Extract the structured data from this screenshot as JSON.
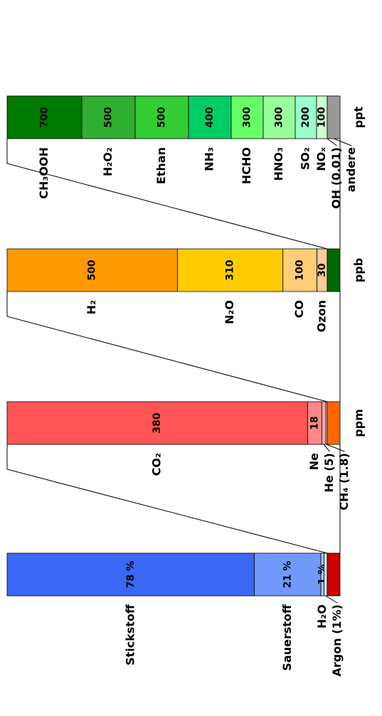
{
  "chart_data": {
    "type": "zoom-stacked-bar",
    "bars": [
      {
        "categories": [
          "Stickstoff",
          "Sauerstoff",
          "H₂O",
          "Argon (1%)"
        ],
        "values": [
          78,
          21,
          1,
          1
        ],
        "value_labels": [
          "78 %",
          "21 %",
          "1 %",
          null
        ],
        "colors": [
          "#3b67f5",
          "#6f99fb",
          "#a8c8fb",
          "#cde8fb"
        ],
        "rest_color": "#cc0000"
      },
      {
        "unit": "ppm",
        "categories": [
          "CO₂",
          "Ne",
          "He (5)",
          "CH₄ (1.8)"
        ],
        "values": [
          380,
          18,
          5,
          1.8
        ],
        "value_labels": [
          "380",
          "18",
          null,
          null
        ],
        "colors": [
          "#ff5555",
          "#ff8888",
          "#ffaaaa",
          "#ffcccc"
        ],
        "rest_color": "#ff6600"
      },
      {
        "unit": "ppb",
        "categories": [
          "H₂",
          "N₂O",
          "CO",
          "Ozon"
        ],
        "values": [
          500,
          310,
          100,
          30
        ],
        "value_labels": [
          "500",
          "310",
          "100",
          "30"
        ],
        "colors": [
          "#ff9900",
          "#ffcc00",
          "#ffcc77",
          "#ffcc99"
        ],
        "rest_color": "#006600"
      },
      {
        "unit": "ppt",
        "categories": [
          "CH₃OOH",
          "H₂O₂",
          "Ethan",
          "NH₃",
          "HCHO",
          "HNO₃",
          "SO₂",
          "NOₓ",
          "OH (0.01)"
        ],
        "values": [
          700,
          500,
          500,
          400,
          300,
          300,
          200,
          100,
          0.01
        ],
        "value_labels": [
          "700",
          "500",
          "500",
          "400",
          "300",
          "300",
          "200",
          "100",
          null
        ],
        "colors": [
          "#007a00",
          "#2fae2f",
          "#33cc33",
          "#00cc66",
          "#66ff66",
          "#99ff99",
          "#99ffcc",
          "#ccffcc",
          "#00aa00"
        ],
        "rest_color": "#999999",
        "rest_label": "andere"
      }
    ]
  }
}
